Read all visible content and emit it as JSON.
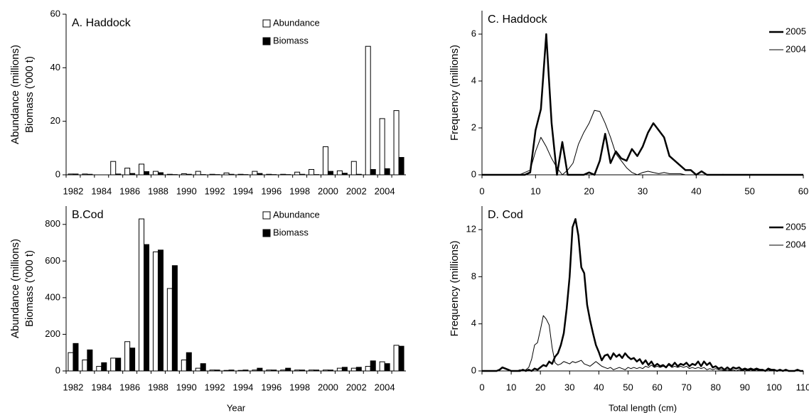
{
  "chart_data": [
    {
      "type": "bar",
      "title": "A. Haddock",
      "ylabel": [
        "Abundance (millions)",
        "Biomass ('000 t)"
      ],
      "categories": [
        1982,
        null,
        1984,
        null,
        1986,
        null,
        1988,
        null,
        1990,
        null,
        1992,
        null,
        1994,
        null,
        1996,
        null,
        1998,
        null,
        2000,
        null,
        2002,
        null,
        2004,
        null
      ],
      "series": [
        {
          "name": "Abundance",
          "color": "#ffffff",
          "values": [
            0.3,
            0.3,
            0,
            5,
            2.5,
            4,
            1.3,
            0.2,
            0.4,
            1.3,
            0.2,
            0.7,
            0.2,
            1.3,
            0.2,
            0.2,
            1,
            2,
            10.5,
            1.5,
            5,
            48,
            21,
            24
          ]
        },
        {
          "name": "Biomass",
          "color": "#000000",
          "values": [
            0.3,
            0.2,
            0,
            0.3,
            0.5,
            1.2,
            0.8,
            0.1,
            0.2,
            0.1,
            0.1,
            0.2,
            0.1,
            0.5,
            0.1,
            0.1,
            0.2,
            0.1,
            1.3,
            0.6,
            0.2,
            2,
            2.3,
            6.5
          ]
        }
      ],
      "ylim": [
        0,
        60
      ],
      "yticks": [
        0,
        20,
        40,
        60
      ]
    },
    {
      "type": "bar",
      "title": "B.Cod",
      "ylabel": [
        "Abundance (millions)",
        "Biomass ('000 t)"
      ],
      "xlabel": "Year",
      "categories": [
        1982,
        null,
        1984,
        null,
        1986,
        null,
        1988,
        null,
        1990,
        null,
        1992,
        null,
        1994,
        null,
        1996,
        null,
        1998,
        null,
        2000,
        null,
        2002,
        null,
        2004,
        null
      ],
      "series": [
        {
          "name": "Abundance",
          "color": "#ffffff",
          "values": [
            100,
            60,
            25,
            70,
            160,
            830,
            650,
            450,
            60,
            15,
            5,
            3,
            3,
            5,
            5,
            5,
            5,
            5,
            5,
            15,
            15,
            25,
            50,
            140
          ]
        },
        {
          "name": "Biomass",
          "color": "#000000",
          "values": [
            150,
            115,
            45,
            70,
            125,
            690,
            660,
            575,
            100,
            40,
            5,
            5,
            5,
            15,
            5,
            15,
            5,
            5,
            5,
            20,
            20,
            55,
            40,
            135
          ]
        }
      ],
      "ylim": [
        0,
        900
      ],
      "yticks": [
        0,
        200,
        400,
        600,
        800
      ]
    },
    {
      "type": "line",
      "title": "C. Haddock",
      "ylabel": "Frequency (millions)",
      "x": [
        0,
        1,
        2,
        3,
        4,
        5,
        6,
        7,
        8,
        9,
        10,
        11,
        12,
        13,
        14,
        15,
        16,
        17,
        18,
        19,
        20,
        21,
        22,
        23,
        24,
        25,
        26,
        27,
        28,
        29,
        30,
        31,
        32,
        33,
        34,
        35,
        36,
        37,
        38,
        39,
        40,
        41,
        42,
        43,
        44,
        45,
        46,
        47,
        48,
        49,
        50,
        51,
        52,
        53,
        54,
        55,
        56,
        57,
        58,
        59,
        60
      ],
      "series": [
        {
          "name": "2005",
          "color": "#000000",
          "width": 2.5,
          "values": [
            0,
            0,
            0,
            0,
            0,
            0,
            0,
            0,
            0,
            0.1,
            1.9,
            2.8,
            6,
            2.2,
            0,
            1.4,
            0,
            0,
            0,
            0,
            0.1,
            0,
            0.6,
            1.75,
            0.5,
            1,
            0.7,
            0.6,
            1.1,
            0.8,
            1.2,
            1.8,
            2.2,
            1.9,
            1.6,
            0.8,
            0.6,
            0.4,
            0.2,
            0.2,
            0,
            0.15,
            0,
            0,
            0,
            0,
            0,
            0,
            0,
            0,
            0,
            0,
            0,
            0,
            0,
            0,
            0,
            0,
            0,
            0,
            0
          ]
        },
        {
          "name": "2004",
          "color": "#000000",
          "width": 1,
          "values": [
            0,
            0,
            0,
            0,
            0,
            0,
            0,
            0,
            0.1,
            0.2,
            1,
            1.6,
            1.2,
            0.7,
            0.3,
            0,
            0.2,
            0.5,
            1.3,
            1.8,
            2.2,
            2.75,
            2.7,
            2.2,
            1.6,
            0.9,
            0.6,
            0.3,
            0.1,
            0,
            0.1,
            0.15,
            0.1,
            0.05,
            0.1,
            0.05,
            0.05,
            0.05,
            0,
            0,
            0,
            0,
            0,
            0,
            0,
            0.02,
            0,
            0,
            0,
            0,
            0,
            0,
            0,
            0,
            0,
            0,
            0,
            0,
            0,
            0,
            0
          ]
        }
      ],
      "xlim": [
        0,
        60
      ],
      "xticks": [
        0,
        10,
        20,
        30,
        40,
        50,
        60
      ],
      "ylim": [
        0,
        7
      ],
      "yticks": [
        0,
        2,
        4,
        6
      ]
    },
    {
      "type": "line",
      "title": "D. Cod",
      "ylabel": "Frequency (millions)",
      "xlabel": "Total length (cm)",
      "x": [
        0,
        1,
        2,
        3,
        4,
        5,
        6,
        7,
        8,
        9,
        10,
        11,
        12,
        13,
        14,
        15,
        16,
        17,
        18,
        19,
        20,
        21,
        22,
        23,
        24,
        25,
        26,
        27,
        28,
        29,
        30,
        31,
        32,
        33,
        34,
        35,
        36,
        37,
        38,
        39,
        40,
        41,
        42,
        43,
        44,
        45,
        46,
        47,
        48,
        49,
        50,
        51,
        52,
        53,
        54,
        55,
        56,
        57,
        58,
        59,
        60,
        61,
        62,
        63,
        64,
        65,
        66,
        67,
        68,
        69,
        70,
        71,
        72,
        73,
        74,
        75,
        76,
        77,
        78,
        79,
        80,
        81,
        82,
        83,
        84,
        85,
        86,
        87,
        88,
        89,
        90,
        91,
        92,
        93,
        94,
        95,
        96,
        97,
        98,
        99,
        100,
        101,
        102,
        103,
        104,
        105,
        106,
        107,
        108,
        109,
        110
      ],
      "series": [
        {
          "name": "2005",
          "color": "#000000",
          "width": 2.5,
          "values": [
            0,
            0,
            0,
            0,
            0,
            0,
            0.1,
            0.3,
            0.2,
            0.1,
            0,
            0,
            0,
            0,
            0.1,
            0,
            0.1,
            0,
            0.2,
            0.1,
            0.3,
            0.5,
            0.4,
            0.8,
            0.6,
            1.2,
            1.5,
            2.2,
            3.2,
            5.3,
            8,
            12.2,
            12.9,
            11.5,
            8.8,
            8.3,
            5.6,
            4.3,
            3.2,
            2.2,
            1.6,
            0.9,
            1.3,
            1.4,
            1,
            1.5,
            1.2,
            1.4,
            1.1,
            1.5,
            1.2,
            1,
            1.1,
            0.8,
            1,
            0.6,
            0.9,
            0.5,
            0.8,
            0.4,
            0.6,
            0.4,
            0.5,
            0.3,
            0.6,
            0.4,
            0.7,
            0.4,
            0.6,
            0.5,
            0.7,
            0.4,
            0.6,
            0.5,
            0.8,
            0.4,
            0.8,
            0.5,
            0.7,
            0.3,
            0.4,
            0.2,
            0.3,
            0.1,
            0.3,
            0.1,
            0.3,
            0.2,
            0.3,
            0.1,
            0.2,
            0.1,
            0.2,
            0.1,
            0.2,
            0.1,
            0.1,
            0,
            0.2,
            0.1,
            0.1,
            0,
            0.1,
            0,
            0.1,
            0,
            0,
            0,
            0.1,
            0,
            0
          ]
        },
        {
          "name": "2004",
          "color": "#000000",
          "width": 1,
          "values": [
            0,
            0,
            0,
            0,
            0,
            0,
            0,
            0,
            0,
            0,
            0,
            0,
            0,
            0.1,
            0,
            0.1,
            0.3,
            1,
            2.2,
            2.4,
            3.5,
            4.7,
            4.4,
            3.9,
            2,
            0.7,
            0.5,
            0.6,
            0.8,
            0.7,
            0.6,
            0.8,
            0.7,
            0.8,
            0.9,
            0.6,
            0.5,
            0.4,
            0.6,
            0.8,
            0.6,
            0.4,
            0.3,
            0.2,
            0.3,
            0.1,
            0.2,
            0.3,
            0.2,
            0.1,
            0.3,
            0.2,
            0.3,
            0.2,
            0.3,
            0.2,
            0.4,
            0.3,
            0.5,
            0.3,
            0.4,
            0.3,
            0.4,
            0.3,
            0.5,
            0.3,
            0.4,
            0.3,
            0.4,
            0.3,
            0.4,
            0.2,
            0.3,
            0.2,
            0.3,
            0.2,
            0.3,
            0.1,
            0.2,
            0.1,
            0.2,
            0.1,
            0.1,
            0,
            0.1,
            0,
            0.1,
            0,
            0.1,
            0,
            0.1,
            0,
            0.1,
            0,
            0.1,
            0,
            0,
            0,
            0.1,
            0,
            0,
            0,
            0,
            0,
            0,
            0,
            0,
            0,
            0,
            0,
            0
          ]
        }
      ],
      "xlim": [
        0,
        110
      ],
      "xticks": [
        0,
        10,
        20,
        30,
        40,
        50,
        60,
        70,
        80,
        90,
        100,
        110
      ],
      "ylim": [
        0,
        14
      ],
      "yticks": [
        0,
        4,
        8,
        12
      ]
    }
  ]
}
